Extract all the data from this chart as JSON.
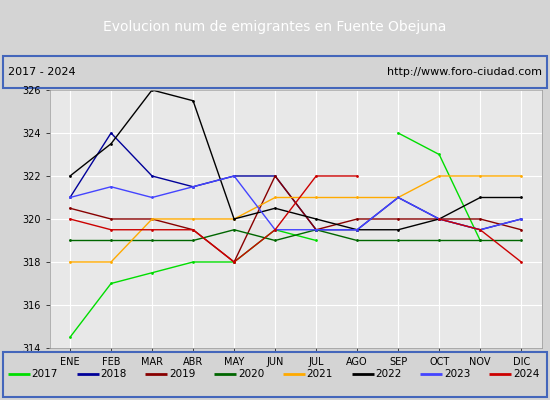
{
  "title": "Evolucion num de emigrantes en Fuente Obejuna",
  "subtitle_left": "2017 - 2024",
  "subtitle_right": "http://www.foro-ciudad.com",
  "months": [
    "ENE",
    "FEB",
    "MAR",
    "ABR",
    "MAY",
    "JUN",
    "JUL",
    "AGO",
    "SEP",
    "OCT",
    "NOV",
    "DIC"
  ],
  "ylim": [
    314,
    326
  ],
  "yticks": [
    314,
    316,
    318,
    320,
    322,
    324,
    326
  ],
  "series": {
    "2017": {
      "color": "#00dd00",
      "data": [
        314.5,
        317.0,
        317.5,
        318.0,
        318.0,
        319.5,
        319.0,
        null,
        324.0,
        323.0,
        319.0,
        null
      ]
    },
    "2018": {
      "color": "#000099",
      "data": [
        321.0,
        324.0,
        322.0,
        321.5,
        322.0,
        322.0,
        319.5,
        319.5,
        321.0,
        320.0,
        319.5,
        320.0
      ]
    },
    "2019": {
      "color": "#880000",
      "data": [
        320.5,
        320.0,
        320.0,
        319.5,
        318.0,
        322.0,
        319.5,
        320.0,
        320.0,
        320.0,
        320.0,
        319.5
      ]
    },
    "2020": {
      "color": "#006600",
      "data": [
        319.0,
        319.0,
        319.0,
        319.0,
        319.5,
        319.0,
        319.5,
        319.0,
        319.0,
        319.0,
        319.0,
        319.0
      ]
    },
    "2021": {
      "color": "#ffaa00",
      "data": [
        318.0,
        318.0,
        320.0,
        320.0,
        320.0,
        321.0,
        321.0,
        321.0,
        321.0,
        322.0,
        322.0,
        322.0
      ]
    },
    "2022": {
      "color": "#000000",
      "data": [
        322.0,
        323.5,
        326.0,
        325.5,
        320.0,
        320.5,
        320.0,
        319.5,
        319.5,
        320.0,
        321.0,
        321.0
      ]
    },
    "2023": {
      "color": "#4444ff",
      "data": [
        321.0,
        321.5,
        321.0,
        321.5,
        322.0,
        319.5,
        319.5,
        319.5,
        321.0,
        320.0,
        319.5,
        320.0
      ]
    },
    "2024": {
      "color": "#cc0000",
      "data": [
        320.0,
        319.5,
        319.5,
        319.5,
        318.0,
        319.5,
        322.0,
        322.0,
        null,
        320.0,
        319.5,
        318.0
      ]
    }
  },
  "bg_color": "#d4d4d4",
  "plot_bg_color": "#e8e8e8",
  "title_bg_color": "#4466bb",
  "title_text_color": "#ffffff",
  "grid_color": "#ffffff",
  "border_color": "#4466bb",
  "subtitle_bg_color": "#d4d4d4"
}
